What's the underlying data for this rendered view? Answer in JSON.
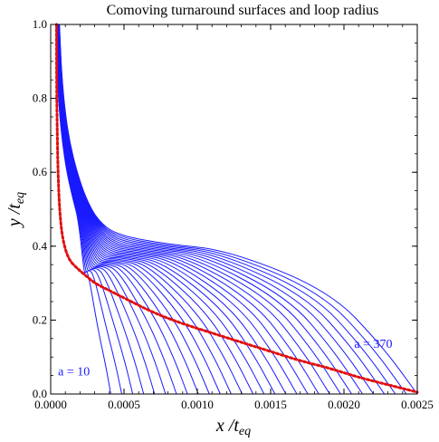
{
  "chart_data": {
    "type": "line",
    "title": "Comoving turnaround surfaces and loop radius",
    "xlabel": "x /t",
    "xlabel_sub": "eq",
    "ylabel": "y /t",
    "ylabel_sub": "eq",
    "xlim": [
      0,
      0.0025
    ],
    "ylim": [
      0,
      1.0
    ],
    "xticks": [
      "0.0000",
      "0.0005",
      "0.0010",
      "0.0015",
      "0.0020",
      "0.0025"
    ],
    "yticks": [
      "0.0",
      "0.2",
      "0.4",
      "0.6",
      "0.8",
      "1.0"
    ],
    "grid": false,
    "colors": {
      "surfaces": "#1a1aff",
      "loop_radius": "#e01010"
    },
    "annotations": [
      {
        "text": "a = 10",
        "x": 5e-05,
        "y": 0.05
      },
      {
        "text": "a = 370",
        "x": 0.00207,
        "y": 0.125
      }
    ],
    "surfaces": {
      "count": 29,
      "a_first": 10,
      "a_last": 370,
      "start_x_first": 0.000235,
      "start_y_first": 0.31,
      "end_x_first": 0.00041,
      "end_x_last": 0.0025,
      "shoulder_y_first": 0.33,
      "shoulder_y_last": 0.4
    },
    "loop_radius": {
      "name": "loop radius",
      "x": [
        4e-05,
        4e-05,
        4.5e-05,
        5e-05,
        6e-05,
        8e-05,
        0.00012,
        0.00018,
        0.00024,
        0.0003,
        0.0004,
        0.0005,
        0.0007,
        0.0009,
        0.0011,
        0.0013,
        0.0015,
        0.0017,
        0.0019,
        0.0021,
        0.0023,
        0.0025
      ],
      "y": [
        1.0,
        0.85,
        0.7,
        0.6,
        0.5,
        0.42,
        0.365,
        0.34,
        0.32,
        0.3,
        0.28,
        0.26,
        0.22,
        0.19,
        0.165,
        0.14,
        0.115,
        0.09,
        0.07,
        0.045,
        0.025,
        0.005
      ]
    }
  }
}
